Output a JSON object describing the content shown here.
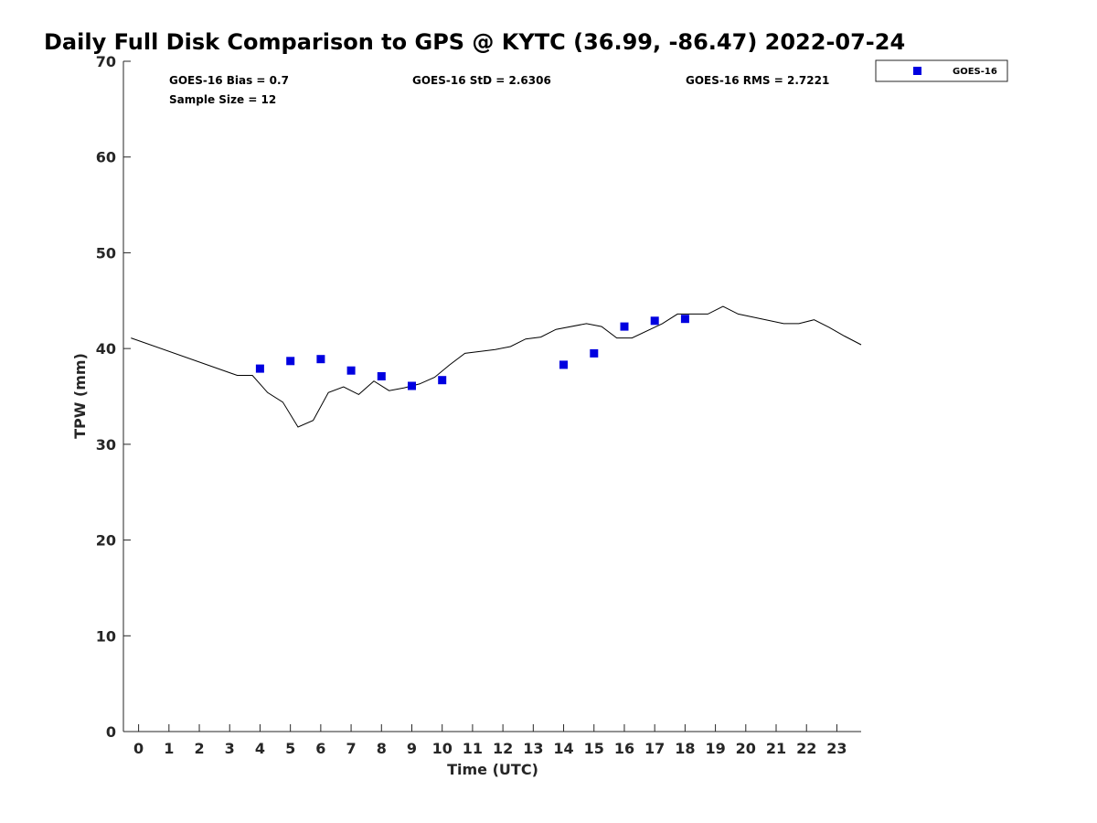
{
  "chart_data": {
    "type": "scatter",
    "title": "Daily Full Disk Comparison to GPS @ KYTC (36.99, -86.47) 2022-07-24",
    "xlabel": "Time (UTC)",
    "ylabel": "TPW (mm)",
    "xlim": [
      -0.5,
      23.8
    ],
    "ylim": [
      0,
      70
    ],
    "xticks": [
      0,
      1,
      2,
      3,
      4,
      5,
      6,
      7,
      8,
      9,
      10,
      11,
      12,
      13,
      14,
      15,
      16,
      17,
      18,
      19,
      20,
      21,
      22,
      23
    ],
    "xtick_labels": [
      "0",
      "1",
      "2",
      "3",
      "4",
      "5",
      "6",
      "7",
      "8",
      "9",
      "10",
      "11",
      "12",
      "13",
      "14",
      "15",
      "16",
      "17",
      "18",
      "19",
      "20",
      "21",
      "22",
      "23"
    ],
    "yticks": [
      0,
      10,
      20,
      30,
      40,
      50,
      60,
      70
    ],
    "ytick_labels": [
      "0",
      "10",
      "20",
      "30",
      "40",
      "50",
      "60",
      "70"
    ],
    "grid": false,
    "legend": {
      "position": "outside-top-right",
      "entries": [
        {
          "label": "GOES-16",
          "marker": "square",
          "color": "#0000e0"
        }
      ]
    },
    "stats": {
      "bias": "GOES-16 Bias = 0.7",
      "std": "GOES-16 StD = 2.6306",
      "rms": "GOES-16 RMS = 2.7221",
      "sample_size": "Sample Size = 12"
    },
    "series": [
      {
        "type": "line",
        "color": "#000000",
        "points": [
          [
            -0.25,
            41.1
          ],
          [
            3.25,
            37.2
          ],
          [
            3.75,
            37.2
          ],
          [
            4.25,
            35.4
          ],
          [
            4.75,
            34.4
          ],
          [
            5.25,
            31.8
          ],
          [
            5.75,
            32.5
          ],
          [
            6.25,
            35.4
          ],
          [
            6.75,
            36.0
          ],
          [
            7.25,
            35.2
          ],
          [
            7.75,
            36.6
          ],
          [
            8.25,
            35.6
          ],
          [
            8.75,
            35.9
          ],
          [
            9.25,
            36.3
          ],
          [
            9.75,
            37.0
          ],
          [
            10.25,
            38.3
          ],
          [
            10.75,
            39.5
          ],
          [
            11.75,
            39.9
          ],
          [
            12.25,
            40.2
          ],
          [
            12.75,
            41.0
          ],
          [
            13.25,
            41.2
          ],
          [
            13.75,
            42.0
          ],
          [
            14.75,
            42.6
          ],
          [
            15.25,
            42.3
          ],
          [
            15.75,
            41.1
          ],
          [
            16.25,
            41.1
          ],
          [
            17.25,
            42.6
          ],
          [
            17.75,
            43.6
          ],
          [
            18.75,
            43.6
          ],
          [
            19.25,
            44.4
          ],
          [
            19.75,
            43.6
          ],
          [
            21.25,
            42.6
          ],
          [
            21.75,
            42.6
          ],
          [
            22.25,
            43.0
          ],
          [
            22.75,
            42.2
          ],
          [
            23.25,
            41.3
          ],
          [
            23.8,
            40.4
          ]
        ]
      },
      {
        "name": "GOES-16",
        "type": "scatter",
        "color": "#0000e0",
        "points": [
          [
            4,
            37.9
          ],
          [
            5,
            38.7
          ],
          [
            6,
            38.9
          ],
          [
            7,
            37.7
          ],
          [
            8,
            37.1
          ],
          [
            9,
            36.1
          ],
          [
            10,
            36.7
          ],
          [
            14,
            38.3
          ],
          [
            15,
            39.5
          ],
          [
            16,
            42.3
          ],
          [
            17,
            42.9
          ],
          [
            18,
            43.1
          ]
        ]
      }
    ]
  }
}
